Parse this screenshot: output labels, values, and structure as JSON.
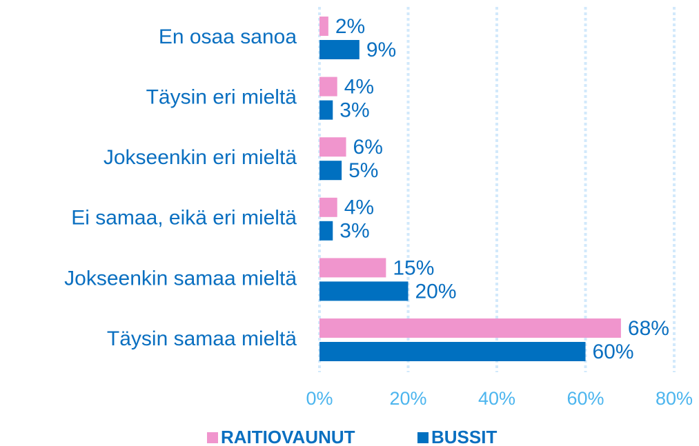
{
  "chart_data": {
    "type": "bar",
    "orientation": "horizontal",
    "categories": [
      "En osaa sanoa",
      "Täysin eri mieltä",
      "Jokseenkin eri mieltä",
      "Ei samaa, eikä eri mieltä",
      "Jokseenkin samaa mieltä",
      "Täysin samaa mieltä"
    ],
    "series": [
      {
        "name": "RAITIOVAUNUT",
        "color": "#f095cd",
        "values": [
          2,
          4,
          6,
          4,
          15,
          68
        ],
        "value_labels": [
          "2%",
          "4%",
          "6%",
          "4%",
          "15%",
          "68%"
        ]
      },
      {
        "name": "BUSSIT",
        "color": "#0070c0",
        "values": [
          9,
          3,
          5,
          3,
          20,
          60
        ],
        "value_labels": [
          "9%",
          "3%",
          "5%",
          "3%",
          "20%",
          "60%"
        ]
      }
    ],
    "xlim": [
      0,
      80
    ],
    "xticks": [
      {
        "value": 0,
        "label": "0%"
      },
      {
        "value": 20,
        "label": "20%"
      },
      {
        "value": 40,
        "label": "40%"
      },
      {
        "value": 60,
        "label": "60%"
      },
      {
        "value": 80,
        "label": "80%"
      }
    ],
    "grid": true,
    "legend": "bottom"
  }
}
